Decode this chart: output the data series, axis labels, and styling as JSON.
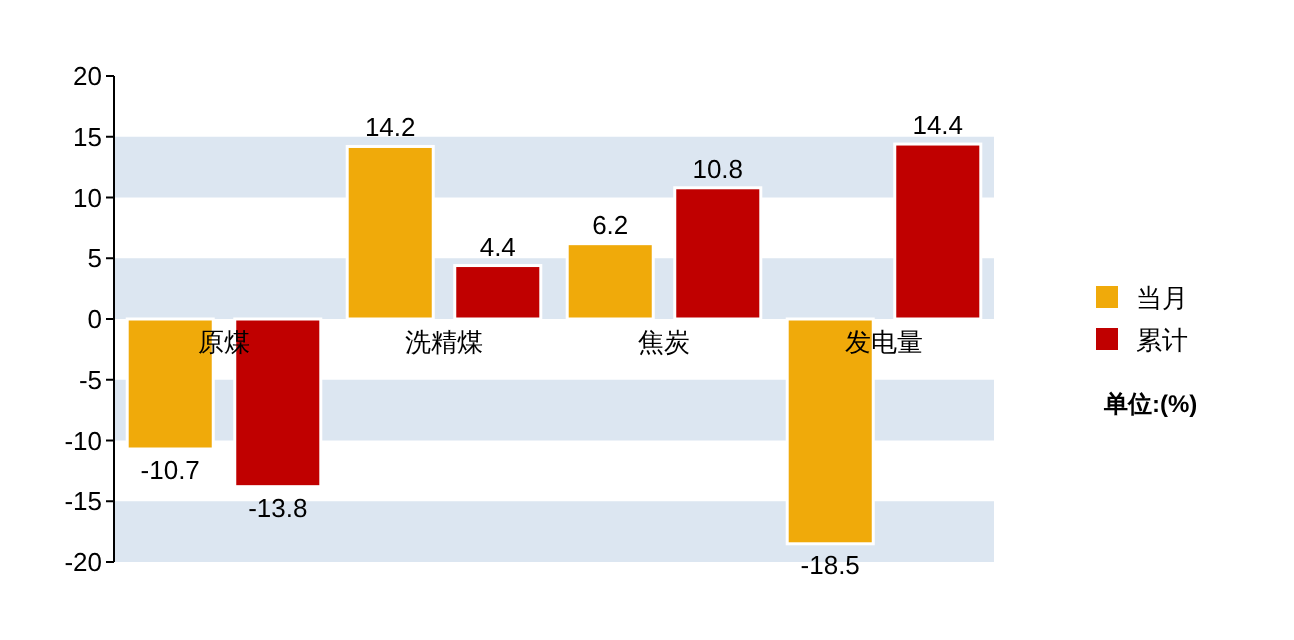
{
  "chart_data": {
    "type": "bar",
    "categories": [
      "原煤",
      "洗精煤",
      "焦炭",
      "发电量"
    ],
    "series": [
      {
        "name": "当月",
        "color": "#f0aa0a",
        "values": [
          -10.7,
          14.2,
          6.2,
          -18.5
        ]
      },
      {
        "name": "累计",
        "color": "#c00000",
        "values": [
          -13.8,
          4.4,
          10.8,
          14.4
        ]
      }
    ],
    "ylim": [
      -20,
      20
    ],
    "yticks": [
      -20,
      -15,
      -10,
      -5,
      0,
      5,
      10,
      15,
      20
    ],
    "bands": [
      {
        "axis": "y",
        "from": 10,
        "to": 15,
        "color": "#dce6f1"
      },
      {
        "axis": "y",
        "from": 0,
        "to": 5,
        "color": "#dce6f1"
      },
      {
        "axis": "y",
        "from": -10,
        "to": -5,
        "color": "#dce6f1"
      },
      {
        "axis": "y",
        "from": -20,
        "to": -15,
        "color": "#dce6f1"
      }
    ],
    "data_labels": true,
    "legend": "right",
    "annotations": [
      "单位:(%)"
    ]
  }
}
